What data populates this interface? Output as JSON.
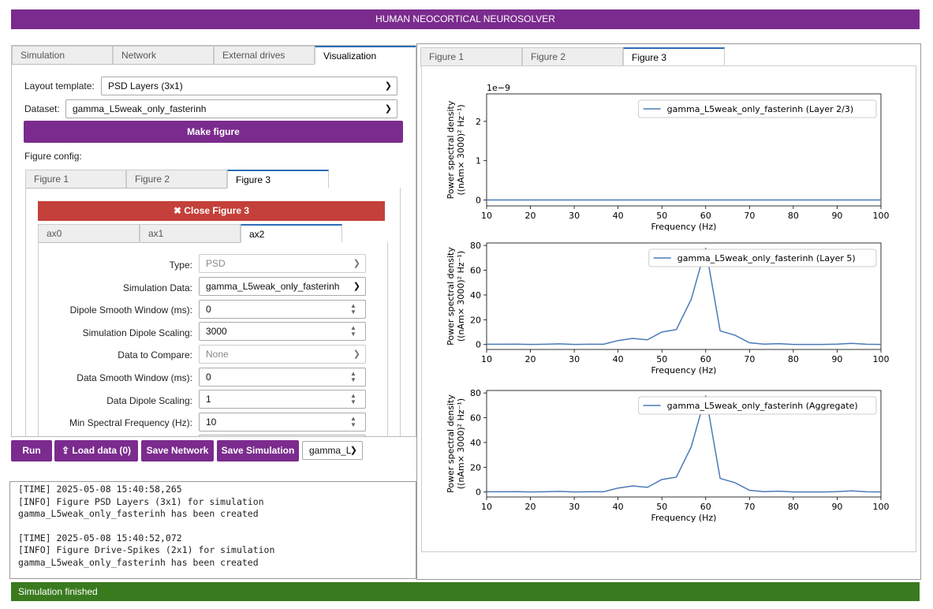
{
  "header": {
    "title": "HUMAN NEOCORTICAL NEUROSOLVER"
  },
  "main_tabs": [
    {
      "label": "Simulation"
    },
    {
      "label": "Network"
    },
    {
      "label": "External drives"
    },
    {
      "label": "Visualization"
    }
  ],
  "visualization": {
    "layout_label": "Layout template:",
    "layout_value": "PSD Layers (3x1)",
    "dataset_label": "Dataset:",
    "dataset_value": "gamma_L5weak_only_fasterinh",
    "make_figure": "Make figure",
    "figure_config_label": "Figure config:",
    "figure_tabs": [
      {
        "label": "Figure 1"
      },
      {
        "label": "Figure 2"
      },
      {
        "label": "Figure 3"
      }
    ],
    "close_button": "Close Figure 3",
    "close_icon": "x-icon",
    "ax_tabs": [
      {
        "label": "ax0"
      },
      {
        "label": "ax1"
      },
      {
        "label": "ax2"
      }
    ],
    "fields": [
      {
        "label": "Type:",
        "value": "PSD",
        "kind": "select",
        "disabled": true
      },
      {
        "label": "Simulation Data:",
        "value": "gamma_L5weak_only_fasterinh",
        "kind": "select",
        "disabled": false
      },
      {
        "label": "Dipole Smooth Window (ms):",
        "value": "0",
        "kind": "number"
      },
      {
        "label": "Simulation Dipole Scaling:",
        "value": "3000",
        "kind": "number"
      },
      {
        "label": "Data to Compare:",
        "value": "None",
        "kind": "select",
        "disabled": true
      },
      {
        "label": "Data Smooth Window (ms):",
        "value": "0",
        "kind": "number"
      },
      {
        "label": "Data Dipole Scaling:",
        "value": "1",
        "kind": "number"
      },
      {
        "label": "Min Spectral Frequency (Hz):",
        "value": "10",
        "kind": "number"
      }
    ]
  },
  "bottom_bar": {
    "run": "Run",
    "load_data": "Load data (0)",
    "load_icon": "upload-icon",
    "save_network": "Save Network",
    "save_simulation": "Save Simulation",
    "sim_select": "gamma_L"
  },
  "log": {
    "lines": [
      "[TIME] 2025-05-08 15:40:58,265",
      "[INFO] Figure PSD Layers (3x1) for simulation gamma_L5weak_only_fasterinh has been created",
      "",
      "[TIME] 2025-05-08 15:40:52,072",
      "[INFO] Figure Drive-Spikes (2x1) for simulation gamma_L5weak_only_fasterinh has been created"
    ]
  },
  "status": {
    "text": "Simulation finished",
    "color": "#3a7a1f"
  },
  "figure_tabs_right": [
    {
      "label": "Figure 1"
    },
    {
      "label": "Figure 2"
    },
    {
      "label": "Figure 3"
    }
  ],
  "colors": {
    "accent": "#7b2b8e",
    "danger": "#c4403a",
    "line": "#4a7ab8"
  },
  "chart_data": [
    {
      "type": "line",
      "xlabel": "Frequency (Hz)",
      "ylabel": "Power spectral density ((nAm× 3000)² Hz⁻¹)",
      "ylabel_line1": "Power spectral density",
      "ylabel_line2": "((nAm× 3000)² Hz⁻¹)",
      "xlim": [
        10,
        100
      ],
      "ylim": [
        -0.15,
        2.7
      ],
      "xticks": [
        10,
        20,
        30,
        40,
        50,
        60,
        70,
        80,
        90,
        100
      ],
      "yticks": [
        0,
        1,
        2
      ],
      "scale_label": "1e−9",
      "legend": "gamma_L5weak_only_fasterinh (Layer 2/3)",
      "legend_position": "top-right",
      "series": [
        {
          "name": "gamma_L5weak_only_fasterinh (Layer 2/3)",
          "x": [
            10,
            100
          ],
          "y": [
            0,
            0
          ]
        }
      ]
    },
    {
      "type": "line",
      "xlabel": "Frequency (Hz)",
      "ylabel": "Power spectral density ((nAm× 3000)² Hz⁻¹)",
      "ylabel_line1": "Power spectral density",
      "ylabel_line2": "((nAm× 3000)² Hz⁻¹)",
      "xlim": [
        10,
        100
      ],
      "ylim": [
        -4,
        82
      ],
      "xticks": [
        10,
        20,
        30,
        40,
        50,
        60,
        70,
        80,
        90,
        100
      ],
      "yticks": [
        0,
        20,
        40,
        60,
        80
      ],
      "legend": "gamma_L5weak_only_fasterinh (Layer 5)",
      "legend_position": "top-right",
      "series": [
        {
          "name": "gamma_L5weak_only_fasterinh (Layer 5)",
          "x": [
            10,
            13.3,
            16.7,
            20,
            23.3,
            26.7,
            30,
            33.3,
            36.7,
            40,
            43.3,
            46.7,
            50,
            53.3,
            56.7,
            60,
            63.3,
            66.7,
            70,
            73.3,
            76.7,
            80,
            83.3,
            86.7,
            90,
            93.3,
            96.7,
            100
          ],
          "y": [
            0.2,
            0.2,
            0.3,
            0.1,
            0.2,
            0.5,
            0.1,
            0.2,
            0.2,
            3.2,
            4.9,
            3.8,
            10.1,
            12.0,
            36.5,
            78.0,
            11.0,
            7.5,
            1.4,
            0.3,
            0.7,
            0.1,
            0.1,
            0.1,
            0.3,
            0.9,
            0.2,
            0.1
          ]
        }
      ]
    },
    {
      "type": "line",
      "xlabel": "Frequency (Hz)",
      "ylabel": "Power spectral density ((nAm× 3000)² Hz⁻¹)",
      "ylabel_line1": "Power spectral density",
      "ylabel_line2": "((nAm× 3000)² Hz⁻¹)",
      "xlim": [
        10,
        100
      ],
      "ylim": [
        -4,
        82
      ],
      "xticks": [
        10,
        20,
        30,
        40,
        50,
        60,
        70,
        80,
        90,
        100
      ],
      "yticks": [
        0,
        20,
        40,
        60,
        80
      ],
      "legend": "gamma_L5weak_only_fasterinh (Aggregate)",
      "legend_position": "top-right",
      "series": [
        {
          "name": "gamma_L5weak_only_fasterinh (Aggregate)",
          "x": [
            10,
            13.3,
            16.7,
            20,
            23.3,
            26.7,
            30,
            33.3,
            36.7,
            40,
            43.3,
            46.7,
            50,
            53.3,
            56.7,
            60,
            63.3,
            66.7,
            70,
            73.3,
            76.7,
            80,
            83.3,
            86.7,
            90,
            93.3,
            96.7,
            100
          ],
          "y": [
            0.2,
            0.2,
            0.3,
            0.1,
            0.2,
            0.5,
            0.1,
            0.2,
            0.2,
            3.2,
            4.9,
            3.8,
            10.1,
            12.0,
            36.5,
            78.0,
            11.0,
            7.5,
            1.4,
            0.3,
            0.7,
            0.1,
            0.1,
            0.1,
            0.3,
            0.9,
            0.2,
            0.1
          ]
        }
      ]
    }
  ]
}
